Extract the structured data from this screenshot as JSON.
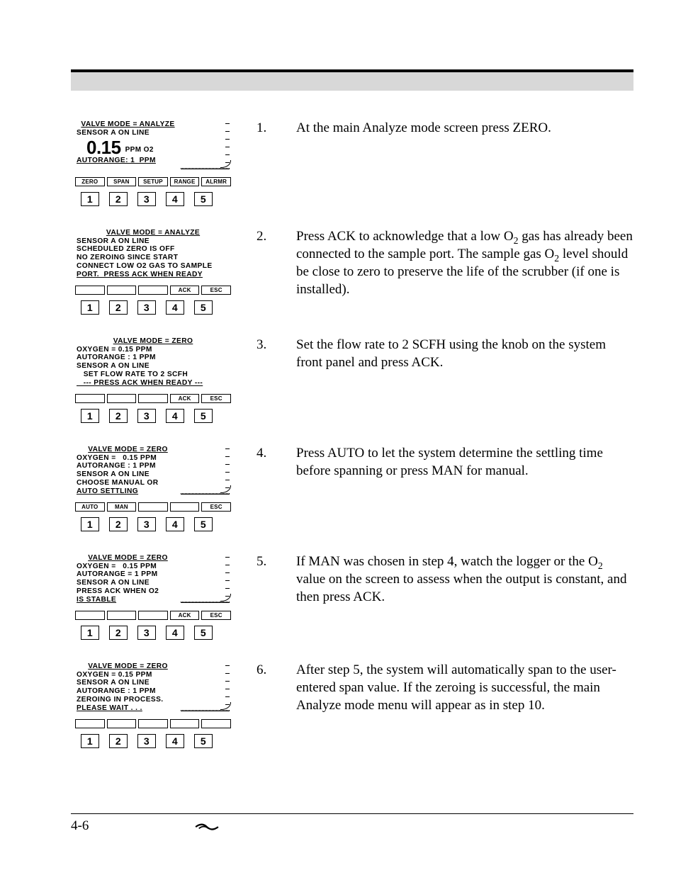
{
  "page_number": "4-6",
  "steps": [
    {
      "n": "1.",
      "text": "At the main Analyze mode screen press ZERO."
    },
    {
      "n": "2.",
      "text": "Press ACK to acknowledge that a low O₂ gas has al­ready been connected to the sample port. The sample gas O₂ level should be close to zero to preserve the life of the scrubber (if one is installed)."
    },
    {
      "n": "3.",
      "text": "Set the flow rate to 2 SCFH using the knob on the sys­tem front panel and press ACK."
    },
    {
      "n": "4.",
      "text": "Press AUTO to let the system determine the settling time before spanning or press MAN for manual."
    },
    {
      "n": "5.",
      "text": "If MAN was chosen in step 4, watch the logger or the O₂ value on the screen to assess when the output is con­stant, and then press ACK."
    },
    {
      "n": "6.",
      "text": "After step 5, the system will automatically span to the user-entered span value. If the zeroing is successful, the main Analyze mode menu will appear as in step 10."
    }
  ],
  "number_row": [
    "1",
    "2",
    "3",
    "4",
    "5"
  ],
  "panels": [
    {
      "has_chart": true,
      "title": "VALVE  MODE = ANALYZE",
      "lines": [
        "SENSOR A ON LINE"
      ],
      "big_value": "0.15",
      "big_unit": "PPM O2",
      "footer_line": "AUTORANGE: 1  PPM",
      "softkeys": [
        "ZERO",
        "SPAN",
        "SETUP",
        "RANGE",
        "ALRMR"
      ]
    },
    {
      "has_chart": false,
      "title": "VALVE  MODE = ANALYZE",
      "lines": [
        "SENSOR A ON LINE",
        "SCHEDULED ZERO IS OFF",
        "NO ZEROING SINCE START",
        "CONNECT LOW O2 GAS TO SAMPLE",
        "PORT.  PRESS ACK WHEN READY"
      ],
      "softkeys": [
        "",
        "",
        "",
        "ACK",
        "ESC"
      ]
    },
    {
      "has_chart": false,
      "title": "VALVE  MODE = ZERO",
      "lines": [
        "OXYGEN = 0.15 PPM",
        "AUTORANGE : 1 PPM",
        "SENSOR A ON LINE",
        "   SET FLOW RATE TO 2 SCFH",
        "   --- PRESS ACK WHEN READY ---"
      ],
      "softkeys": [
        "",
        "",
        "",
        "ACK",
        "ESC"
      ]
    },
    {
      "has_chart": true,
      "title": "VALVE  MODE = ZERO",
      "lines": [
        "OXYGEN =   0.15 PPM",
        "AUTORANGE : 1 PPM",
        "SENSOR A ON LINE",
        "CHOOSE MANUAL OR",
        "AUTO SETTLING"
      ],
      "softkeys": [
        "AUTO",
        "MAN",
        "",
        "",
        "ESC"
      ]
    },
    {
      "has_chart": true,
      "title": "VALVE  MODE = ZERO",
      "lines": [
        "OXYGEN =   0.15 PPM",
        "AUTORANGE = 1 PPM",
        "SENSOR A ON LINE",
        "PRESS ACK WHEN O2",
        "IS STABLE"
      ],
      "softkeys": [
        "",
        "",
        "",
        "ACK",
        "ESC"
      ]
    },
    {
      "has_chart": true,
      "title": "VALVE  MODE = ZERO",
      "lines": [
        "OXYGEN = 0.15 PPM",
        "SENSOR A ON LINE",
        "AUTORANGE : 1 PPM",
        "ZEROING IN PROCESS.",
        "PLEASE WAIT . . ."
      ],
      "softkeys": [
        "",
        "",
        "",
        "",
        ""
      ]
    }
  ],
  "chart_ticks": 6,
  "colors": {
    "text": "#000000",
    "band": "#d8d8d8",
    "bg": "#ffffff"
  }
}
